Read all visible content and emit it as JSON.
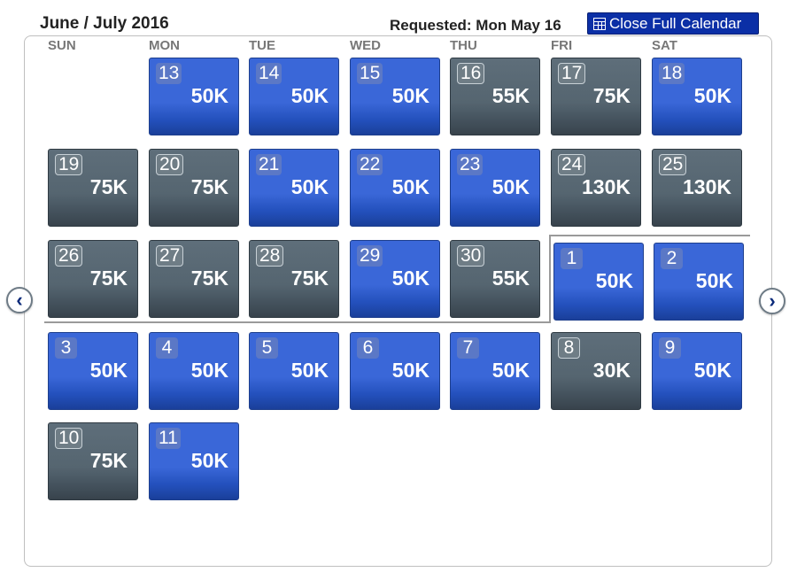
{
  "header": {
    "title": "June / July 2016",
    "requested": "Requested: Mon May 16",
    "close_label": "Close Full Calendar"
  },
  "weekdays": [
    "SUN",
    "MON",
    "TUE",
    "WED",
    "THU",
    "FRI",
    "SAT"
  ],
  "colors": {
    "available": "#3a67d8",
    "premium": "#556570",
    "button": "#0b2fa6"
  },
  "days": [
    {
      "day": "13",
      "price": "50K",
      "style": "blue"
    },
    {
      "day": "14",
      "price": "50K",
      "style": "blue"
    },
    {
      "day": "15",
      "price": "50K",
      "style": "blue"
    },
    {
      "day": "16",
      "price": "55K",
      "style": "gray"
    },
    {
      "day": "17",
      "price": "75K",
      "style": "gray"
    },
    {
      "day": "18",
      "price": "50K",
      "style": "blue"
    },
    {
      "day": "19",
      "price": "75K",
      "style": "gray"
    },
    {
      "day": "20",
      "price": "75K",
      "style": "gray"
    },
    {
      "day": "21",
      "price": "50K",
      "style": "blue"
    },
    {
      "day": "22",
      "price": "50K",
      "style": "blue"
    },
    {
      "day": "23",
      "price": "50K",
      "style": "blue"
    },
    {
      "day": "24",
      "price": "130K",
      "style": "gray"
    },
    {
      "day": "25",
      "price": "130K",
      "style": "gray"
    },
    {
      "day": "26",
      "price": "75K",
      "style": "gray"
    },
    {
      "day": "27",
      "price": "75K",
      "style": "gray"
    },
    {
      "day": "28",
      "price": "75K",
      "style": "gray"
    },
    {
      "day": "29",
      "price": "50K",
      "style": "blue"
    },
    {
      "day": "30",
      "price": "55K",
      "style": "gray"
    },
    {
      "day": "1",
      "price": "50K",
      "style": "blue"
    },
    {
      "day": "2",
      "price": "50K",
      "style": "blue"
    },
    {
      "day": "3",
      "price": "50K",
      "style": "blue"
    },
    {
      "day": "4",
      "price": "50K",
      "style": "blue"
    },
    {
      "day": "5",
      "price": "50K",
      "style": "blue"
    },
    {
      "day": "6",
      "price": "50K",
      "style": "blue"
    },
    {
      "day": "7",
      "price": "50K",
      "style": "blue"
    },
    {
      "day": "8",
      "price": "30K",
      "style": "gray"
    },
    {
      "day": "9",
      "price": "50K",
      "style": "blue"
    },
    {
      "day": "10",
      "price": "75K",
      "style": "gray"
    },
    {
      "day": "11",
      "price": "50K",
      "style": "blue"
    }
  ],
  "nav": {
    "prev_icon": "chevron-left-icon",
    "next_icon": "chevron-right-icon"
  }
}
